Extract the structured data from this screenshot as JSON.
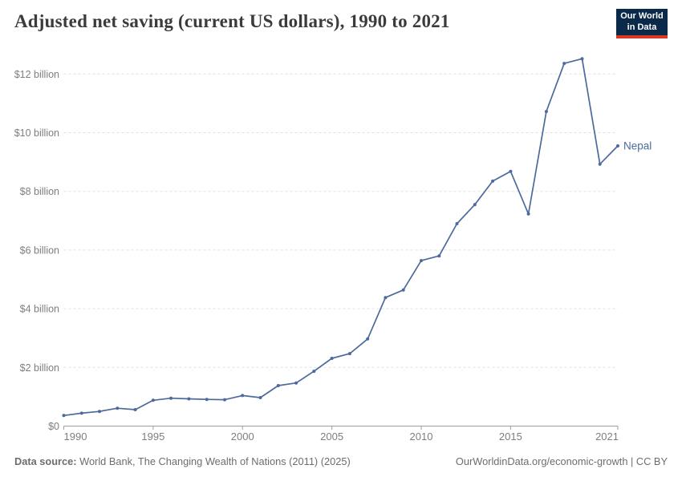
{
  "header": {
    "title": "Adjusted net saving (current US dollars), 1990 to 2021",
    "logo": {
      "line1": "Our World",
      "line2": "in Data"
    }
  },
  "chart_data": {
    "type": "line",
    "title": "Adjusted net saving (current US dollars), 1990 to 2021",
    "xlabel": "",
    "ylabel": "",
    "xlim": [
      1990,
      2021
    ],
    "ylim": [
      0,
      12.87
    ],
    "grid": "horizontal-dashed",
    "legend_position": "end-of-line",
    "xticks": [
      1990,
      1995,
      2000,
      2005,
      2010,
      2015,
      2021
    ],
    "yticks": [
      {
        "value": 0,
        "label": "$0"
      },
      {
        "value": 2,
        "label": "$2 billion"
      },
      {
        "value": 4,
        "label": "$4 billion"
      },
      {
        "value": 6,
        "label": "$6 billion"
      },
      {
        "value": 8,
        "label": "$8 billion"
      },
      {
        "value": 10,
        "label": "$10 billion"
      },
      {
        "value": 12,
        "label": "$12 billion"
      }
    ],
    "series": [
      {
        "name": "Nepal",
        "color": "#4C6A9C",
        "unit": "billion US dollars",
        "x": [
          1990,
          1991,
          1992,
          1993,
          1994,
          1995,
          1996,
          1997,
          1998,
          1999,
          2000,
          2001,
          2002,
          2003,
          2004,
          2005,
          2006,
          2007,
          2008,
          2009,
          2010,
          2011,
          2012,
          2013,
          2014,
          2015,
          2016,
          2017,
          2018,
          2019,
          2020,
          2021
        ],
        "values": [
          0.36,
          0.44,
          0.5,
          0.61,
          0.56,
          0.88,
          0.95,
          0.93,
          0.91,
          0.9,
          1.04,
          0.97,
          1.38,
          1.47,
          1.87,
          2.31,
          2.47,
          2.97,
          4.38,
          4.64,
          5.64,
          5.8,
          6.9,
          7.55,
          8.35,
          8.68,
          7.23,
          10.72,
          12.36,
          12.52,
          8.93,
          9.55
        ]
      }
    ],
    "colors": {
      "gridline": "#e0e0e0",
      "axis": "#9e9e9e",
      "tick_label": "#7e7e7e"
    }
  },
  "footer": {
    "datasource_label": "Data source:",
    "datasource_text": "World Bank, The Changing Wealth of Nations (2011) (2025)",
    "credit": "OurWorldinData.org/economic-growth | CC BY"
  }
}
